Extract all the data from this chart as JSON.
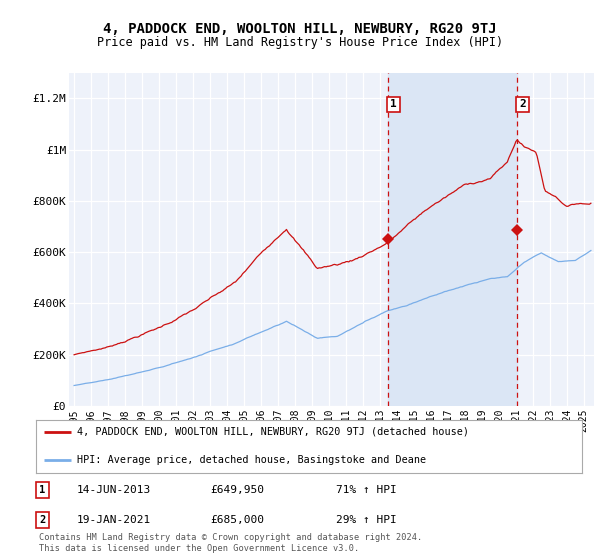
{
  "title": "4, PADDOCK END, WOOLTON HILL, NEWBURY, RG20 9TJ",
  "subtitle": "Price paid vs. HM Land Registry's House Price Index (HPI)",
  "legend_line1": "4, PADDOCK END, WOOLTON HILL, NEWBURY, RG20 9TJ (detached house)",
  "legend_line2": "HPI: Average price, detached house, Basingstoke and Deane",
  "footer": "Contains HM Land Registry data © Crown copyright and database right 2024.\nThis data is licensed under the Open Government Licence v3.0.",
  "transaction1_date": "14-JUN-2013",
  "transaction1_price": "£649,950",
  "transaction1_hpi": "71% ↑ HPI",
  "transaction2_date": "19-JAN-2021",
  "transaction2_price": "£685,000",
  "transaction2_hpi": "29% ↑ HPI",
  "hpi_color": "#7aaee8",
  "price_color": "#cc1111",
  "background_color": "#ffffff",
  "plot_bg_color": "#eef2fa",
  "shaded_region_color": "#dbe6f5",
  "ylim": [
    0,
    1300000
  ],
  "yticks": [
    0,
    200000,
    400000,
    600000,
    800000,
    1000000,
    1200000
  ],
  "ytick_labels": [
    "£0",
    "£200K",
    "£400K",
    "£600K",
    "£800K",
    "£1M",
    "£1.2M"
  ],
  "transaction1_x": 2013.45,
  "transaction1_y": 649950,
  "transaction2_x": 2021.05,
  "transaction2_y": 685000,
  "xmin": 1994.7,
  "xmax": 2025.6
}
